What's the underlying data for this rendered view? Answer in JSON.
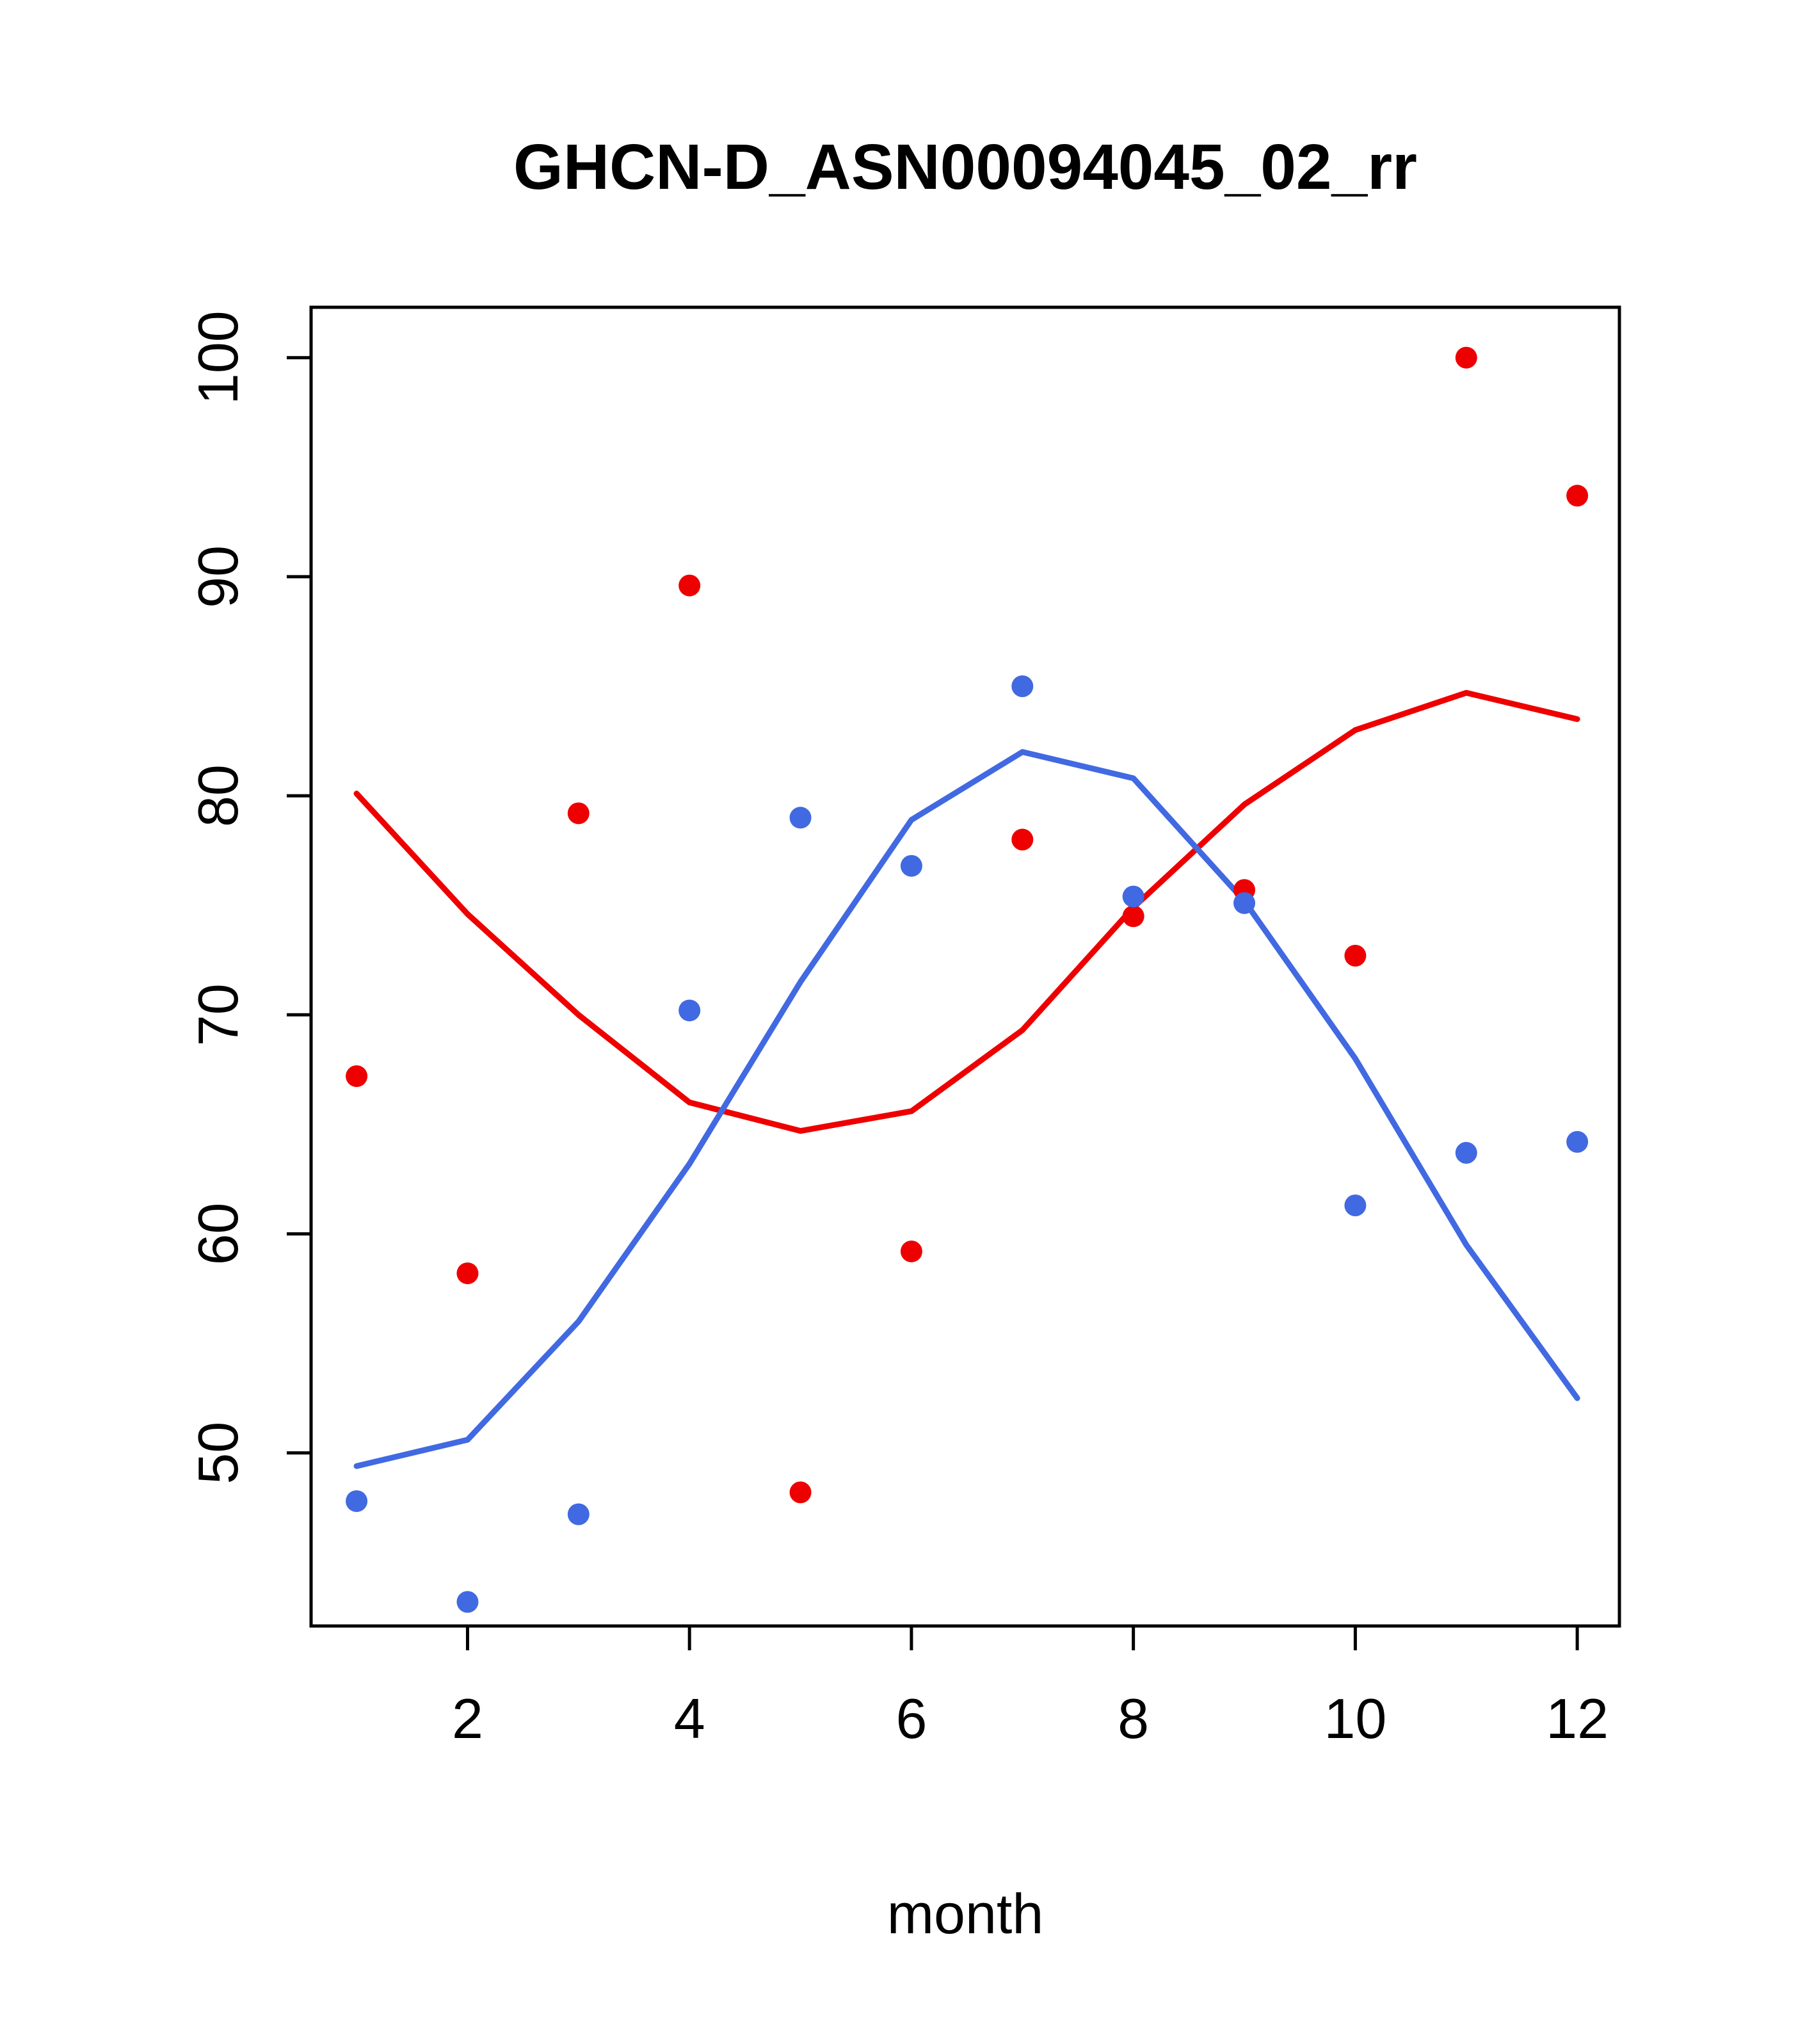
{
  "chart_data": {
    "type": "scatter",
    "title": "GHCN-D_ASN00094045_02_rr",
    "xlabel": "month",
    "ylabel": "",
    "xlim": [
      0.59,
      12.38
    ],
    "ylim": [
      42.1,
      102.3
    ],
    "x_ticks": [
      2,
      4,
      6,
      8,
      10,
      12
    ],
    "y_ticks": [
      50,
      60,
      70,
      80,
      90,
      100
    ],
    "x": [
      1,
      2,
      3,
      4,
      5,
      6,
      7,
      8,
      9,
      10,
      11,
      12
    ],
    "grid": false,
    "legend": "none",
    "colors": {
      "red": "#EE0000",
      "blue": "#4169E1",
      "axis": "#000000",
      "background": "#FFFFFF"
    },
    "series": [
      {
        "name": "red-points",
        "kind": "points",
        "color": "#EE0000",
        "values": [
          67.2,
          58.2,
          79.2,
          89.6,
          48.2,
          59.2,
          78.0,
          74.5,
          75.7,
          72.7,
          100.0,
          93.7
        ]
      },
      {
        "name": "blue-points",
        "kind": "points",
        "color": "#4169E1",
        "values": [
          47.8,
          43.2,
          47.2,
          70.2,
          79.0,
          76.8,
          85.0,
          75.4,
          75.1,
          61.3,
          63.7,
          64.2
        ]
      },
      {
        "name": "red-smooth-line",
        "kind": "line",
        "color": "#EE0000",
        "values": [
          80.1,
          74.6,
          70.0,
          66.0,
          64.7,
          65.6,
          69.3,
          74.9,
          79.6,
          83.0,
          84.7,
          83.5
        ]
      },
      {
        "name": "blue-smooth-line",
        "kind": "line",
        "color": "#4169E1",
        "values": [
          49.4,
          50.6,
          56.0,
          63.2,
          71.5,
          78.9,
          82.0,
          80.8,
          75.2,
          68.0,
          59.5,
          52.5
        ]
      }
    ]
  }
}
